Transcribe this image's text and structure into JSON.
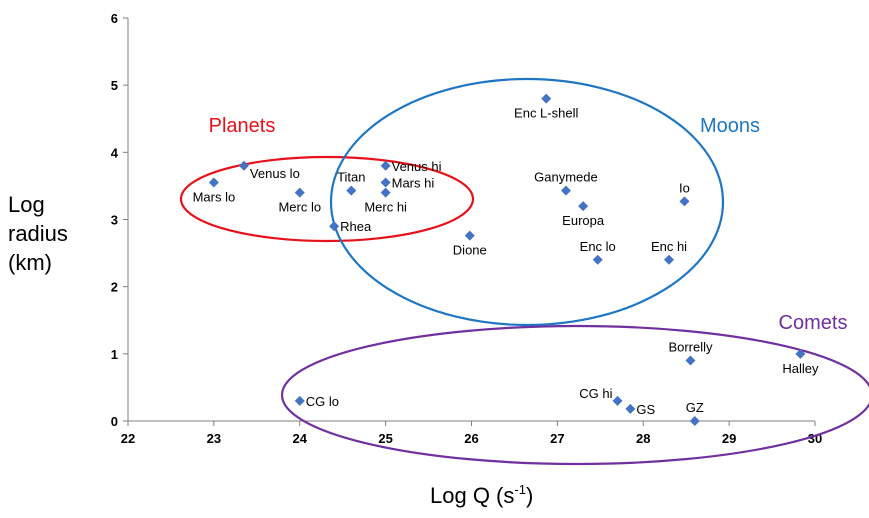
{
  "chart_data": {
    "type": "scatter",
    "title": "",
    "xlabel": {
      "main": "Log Q (s",
      "sup": "-1",
      "end": ")"
    },
    "ylabel": [
      "Log",
      "radius",
      "(km)"
    ],
    "xlim": [
      22,
      30
    ],
    "ylim": [
      0,
      6
    ],
    "xticks": [
      "22",
      "23",
      "24",
      "25",
      "26",
      "27",
      "28",
      "29",
      "30"
    ],
    "yticks": [
      "0",
      "1",
      "2",
      "3",
      "4",
      "5",
      "6"
    ],
    "grid": false,
    "marker_color": "#4472C4",
    "points": [
      {
        "label": "Mars lo",
        "x": 23.0,
        "y": 3.55,
        "pos": "below"
      },
      {
        "label": "Venus lo",
        "x": 23.35,
        "y": 3.8,
        "pos": "below-right"
      },
      {
        "label": "Merc lo",
        "x": 24.0,
        "y": 3.4,
        "pos": "below"
      },
      {
        "label": "Rhea",
        "x": 24.4,
        "y": 2.9,
        "pos": "right"
      },
      {
        "label": "Titan",
        "x": 24.6,
        "y": 3.43,
        "pos": "above"
      },
      {
        "label": "Venus hi",
        "x": 25.0,
        "y": 3.8,
        "pos": "right"
      },
      {
        "label": "Mars hi",
        "x": 25.0,
        "y": 3.55,
        "pos": "right"
      },
      {
        "label": "Merc hi",
        "x": 25.0,
        "y": 3.4,
        "pos": "below"
      },
      {
        "label": "Dione",
        "x": 25.98,
        "y": 2.76,
        "pos": "below"
      },
      {
        "label": "Enc L-shell",
        "x": 26.87,
        "y": 4.8,
        "pos": "below"
      },
      {
        "label": "Ganymede",
        "x": 27.1,
        "y": 3.43,
        "pos": "above"
      },
      {
        "label": "Europa",
        "x": 27.3,
        "y": 3.2,
        "pos": "below"
      },
      {
        "label": "Io",
        "x": 28.48,
        "y": 3.27,
        "pos": "above"
      },
      {
        "label": "Enc lo",
        "x": 27.47,
        "y": 2.4,
        "pos": "above"
      },
      {
        "label": "Enc hi",
        "x": 28.3,
        "y": 2.4,
        "pos": "above"
      },
      {
        "label": "Borrelly",
        "x": 28.55,
        "y": 0.9,
        "pos": "above"
      },
      {
        "label": "Halley",
        "x": 29.83,
        "y": 1.0,
        "pos": "below"
      },
      {
        "label": "CG lo",
        "x": 24.0,
        "y": 0.3,
        "pos": "right"
      },
      {
        "label": "CG hi",
        "x": 27.7,
        "y": 0.3,
        "pos": "left"
      },
      {
        "label": "GS",
        "x": 27.85,
        "y": 0.18,
        "pos": "right"
      },
      {
        "label": "GZ",
        "x": 28.6,
        "y": 0.0,
        "pos": "above"
      }
    ],
    "groups": [
      {
        "name": "Planets",
        "color": "#E8101A"
      },
      {
        "name": "Moons",
        "color": "#1F77C4"
      },
      {
        "name": "Comets",
        "color": "#7030A0"
      }
    ]
  }
}
